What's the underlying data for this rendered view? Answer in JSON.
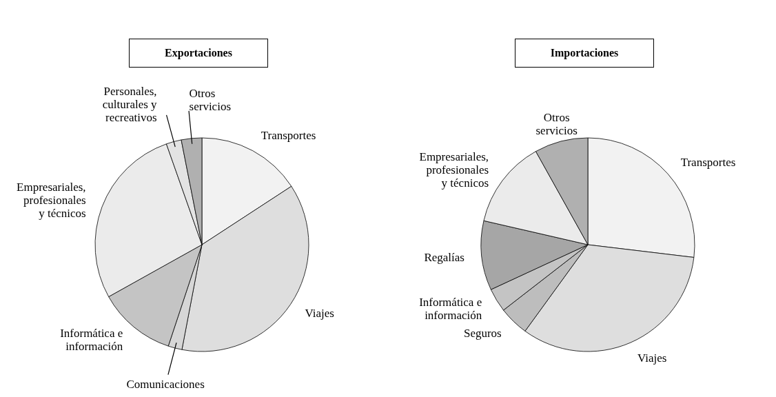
{
  "chart_data": [
    {
      "type": "pie",
      "title": "Exportaciones",
      "legend": false,
      "categories": [
        "Transportes",
        "Viajes",
        "Comunicaciones",
        "Informática e información",
        "Empresariales, profesionales y técnicos",
        "Personales, culturales y recreativos",
        "Otros servicios"
      ],
      "values": [
        15.8,
        37.2,
        2.1,
        11.8,
        27.7,
        2.3,
        3.1
      ],
      "colors": [
        "#f2f2f2",
        "#dedede",
        "#d6d6d6",
        "#c4c4c4",
        "#ebebeb",
        "#e3e3e3",
        "#b0b0b0"
      ]
    },
    {
      "type": "pie",
      "title": "Importaciones",
      "legend": false,
      "categories": [
        "Transportes",
        "Viajes",
        "Seguros",
        "Informática e información",
        "Regalías",
        "Empresariales, profesionales y técnicos",
        "Otros servicios"
      ],
      "values": [
        26.9,
        33.1,
        4.5,
        3.6,
        10.5,
        13.3,
        8.1
      ],
      "colors": [
        "#f2f2f2",
        "#dedede",
        "#bdbdbd",
        "#c4c4c4",
        "#a6a6a6",
        "#ebebeb",
        "#b0b0b0"
      ]
    }
  ]
}
